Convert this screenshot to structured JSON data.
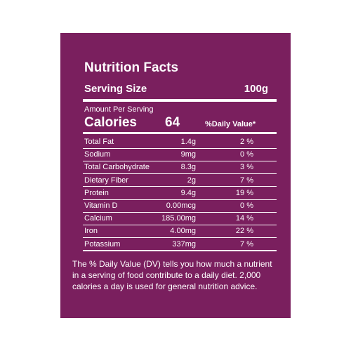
{
  "header": {
    "title": "Nutrition Facts",
    "serving_label": "Serving Size",
    "serving_value": "100g"
  },
  "amount_label": "Amount Per Serving",
  "calories": {
    "label": "Calories",
    "value": "64",
    "dv_header": "%Daily Value*"
  },
  "table": {
    "rows": [
      [
        "Total Fat",
        "1.4g",
        "2 %"
      ],
      [
        "Sodium",
        "9mg",
        "0 %"
      ],
      [
        "Total Carbohydrate",
        "8.3g",
        "3 %"
      ],
      [
        "Dietary Fiber",
        "2g",
        "7 %"
      ],
      [
        "Protein",
        "9.4g",
        "19 %"
      ],
      [
        "Vitamin D",
        "0.00mcg",
        "0 %"
      ],
      [
        "Calcium",
        "185.00mg",
        "14 %"
      ],
      [
        "Iron",
        "4.00mg",
        "22 %"
      ],
      [
        "Potassium",
        "337mg",
        "7 %"
      ]
    ]
  },
  "footnote": [
    "The % Daily Value (DV) tells you how much a nutrient",
    "in a serving of food contribute to a daily diet. 2,000",
    "calories a day is used for general nutrition advice."
  ]
}
